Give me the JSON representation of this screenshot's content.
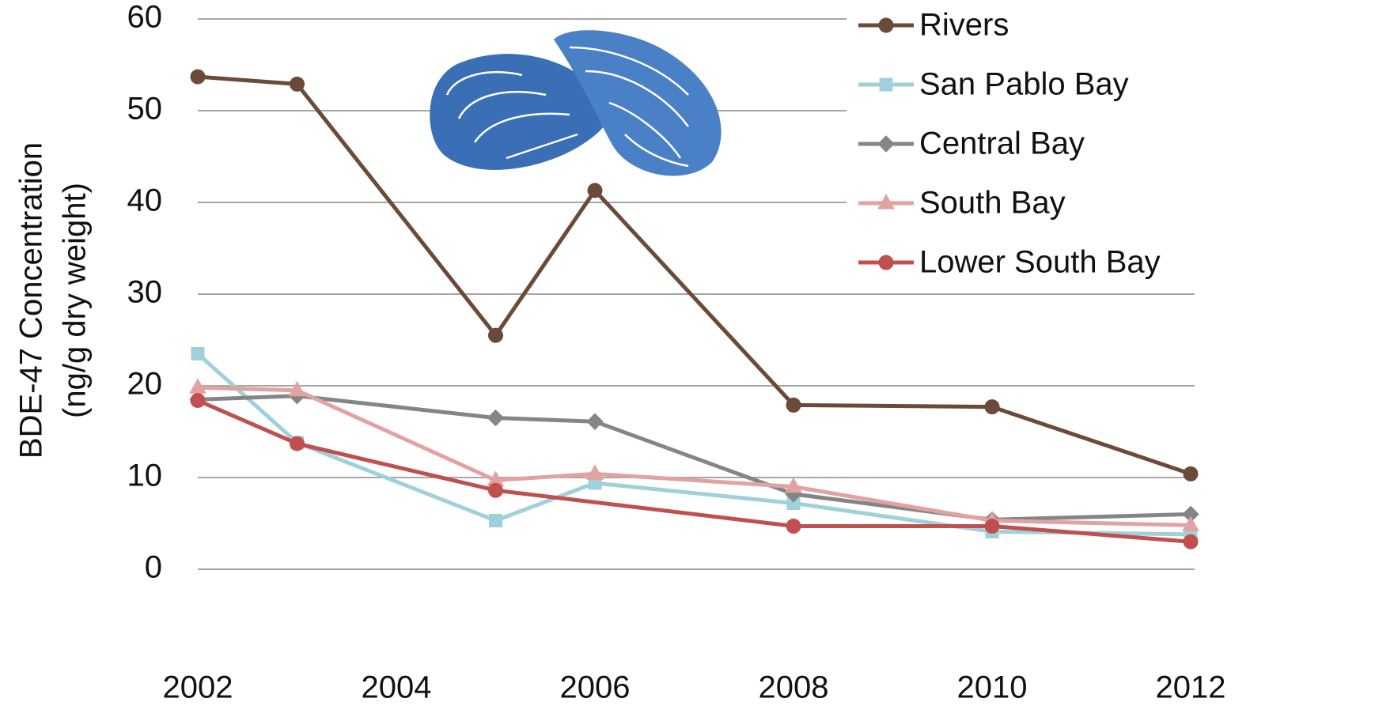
{
  "chart_data": {
    "type": "line",
    "ylabel": [
      "BDE-47 Concentration",
      "(ng/g dry weight)"
    ],
    "x": [
      2002,
      2003,
      2005,
      2006,
      2008,
      2010,
      2012
    ],
    "xlim": [
      2002,
      2012
    ],
    "xticks": [
      2002,
      2004,
      2006,
      2008,
      2010,
      2012
    ],
    "ylim": [
      0,
      60
    ],
    "yticks": [
      0,
      10,
      20,
      30,
      40,
      50,
      60
    ],
    "grid": true,
    "legend": "right",
    "series": [
      {
        "name": "Rivers",
        "color": "#6b4a3a",
        "marker": "circle",
        "values": [
          53.7,
          52.9,
          25.5,
          41.3,
          17.9,
          17.7,
          10.4
        ]
      },
      {
        "name": "San Pablo Bay",
        "color": "#9fd0dc",
        "marker": "square",
        "values": [
          23.5,
          13.8,
          5.3,
          9.4,
          7.2,
          4.1,
          3.8
        ]
      },
      {
        "name": "Central Bay",
        "color": "#858585",
        "marker": "diamond",
        "values": [
          18.5,
          18.9,
          16.5,
          16.1,
          8.2,
          5.4,
          6.0
        ]
      },
      {
        "name": "South Bay",
        "color": "#e3a2a2",
        "marker": "triangle",
        "values": [
          19.8,
          19.5,
          9.7,
          10.4,
          9.0,
          5.3,
          4.8
        ]
      },
      {
        "name": "Lower South Bay",
        "color": "#c0504d",
        "marker": "circle",
        "x": [
          2002,
          2003,
          2005,
          2008,
          2010,
          2012
        ],
        "values": [
          18.4,
          13.7,
          8.6,
          4.7,
          4.7,
          3.0
        ]
      }
    ]
  }
}
